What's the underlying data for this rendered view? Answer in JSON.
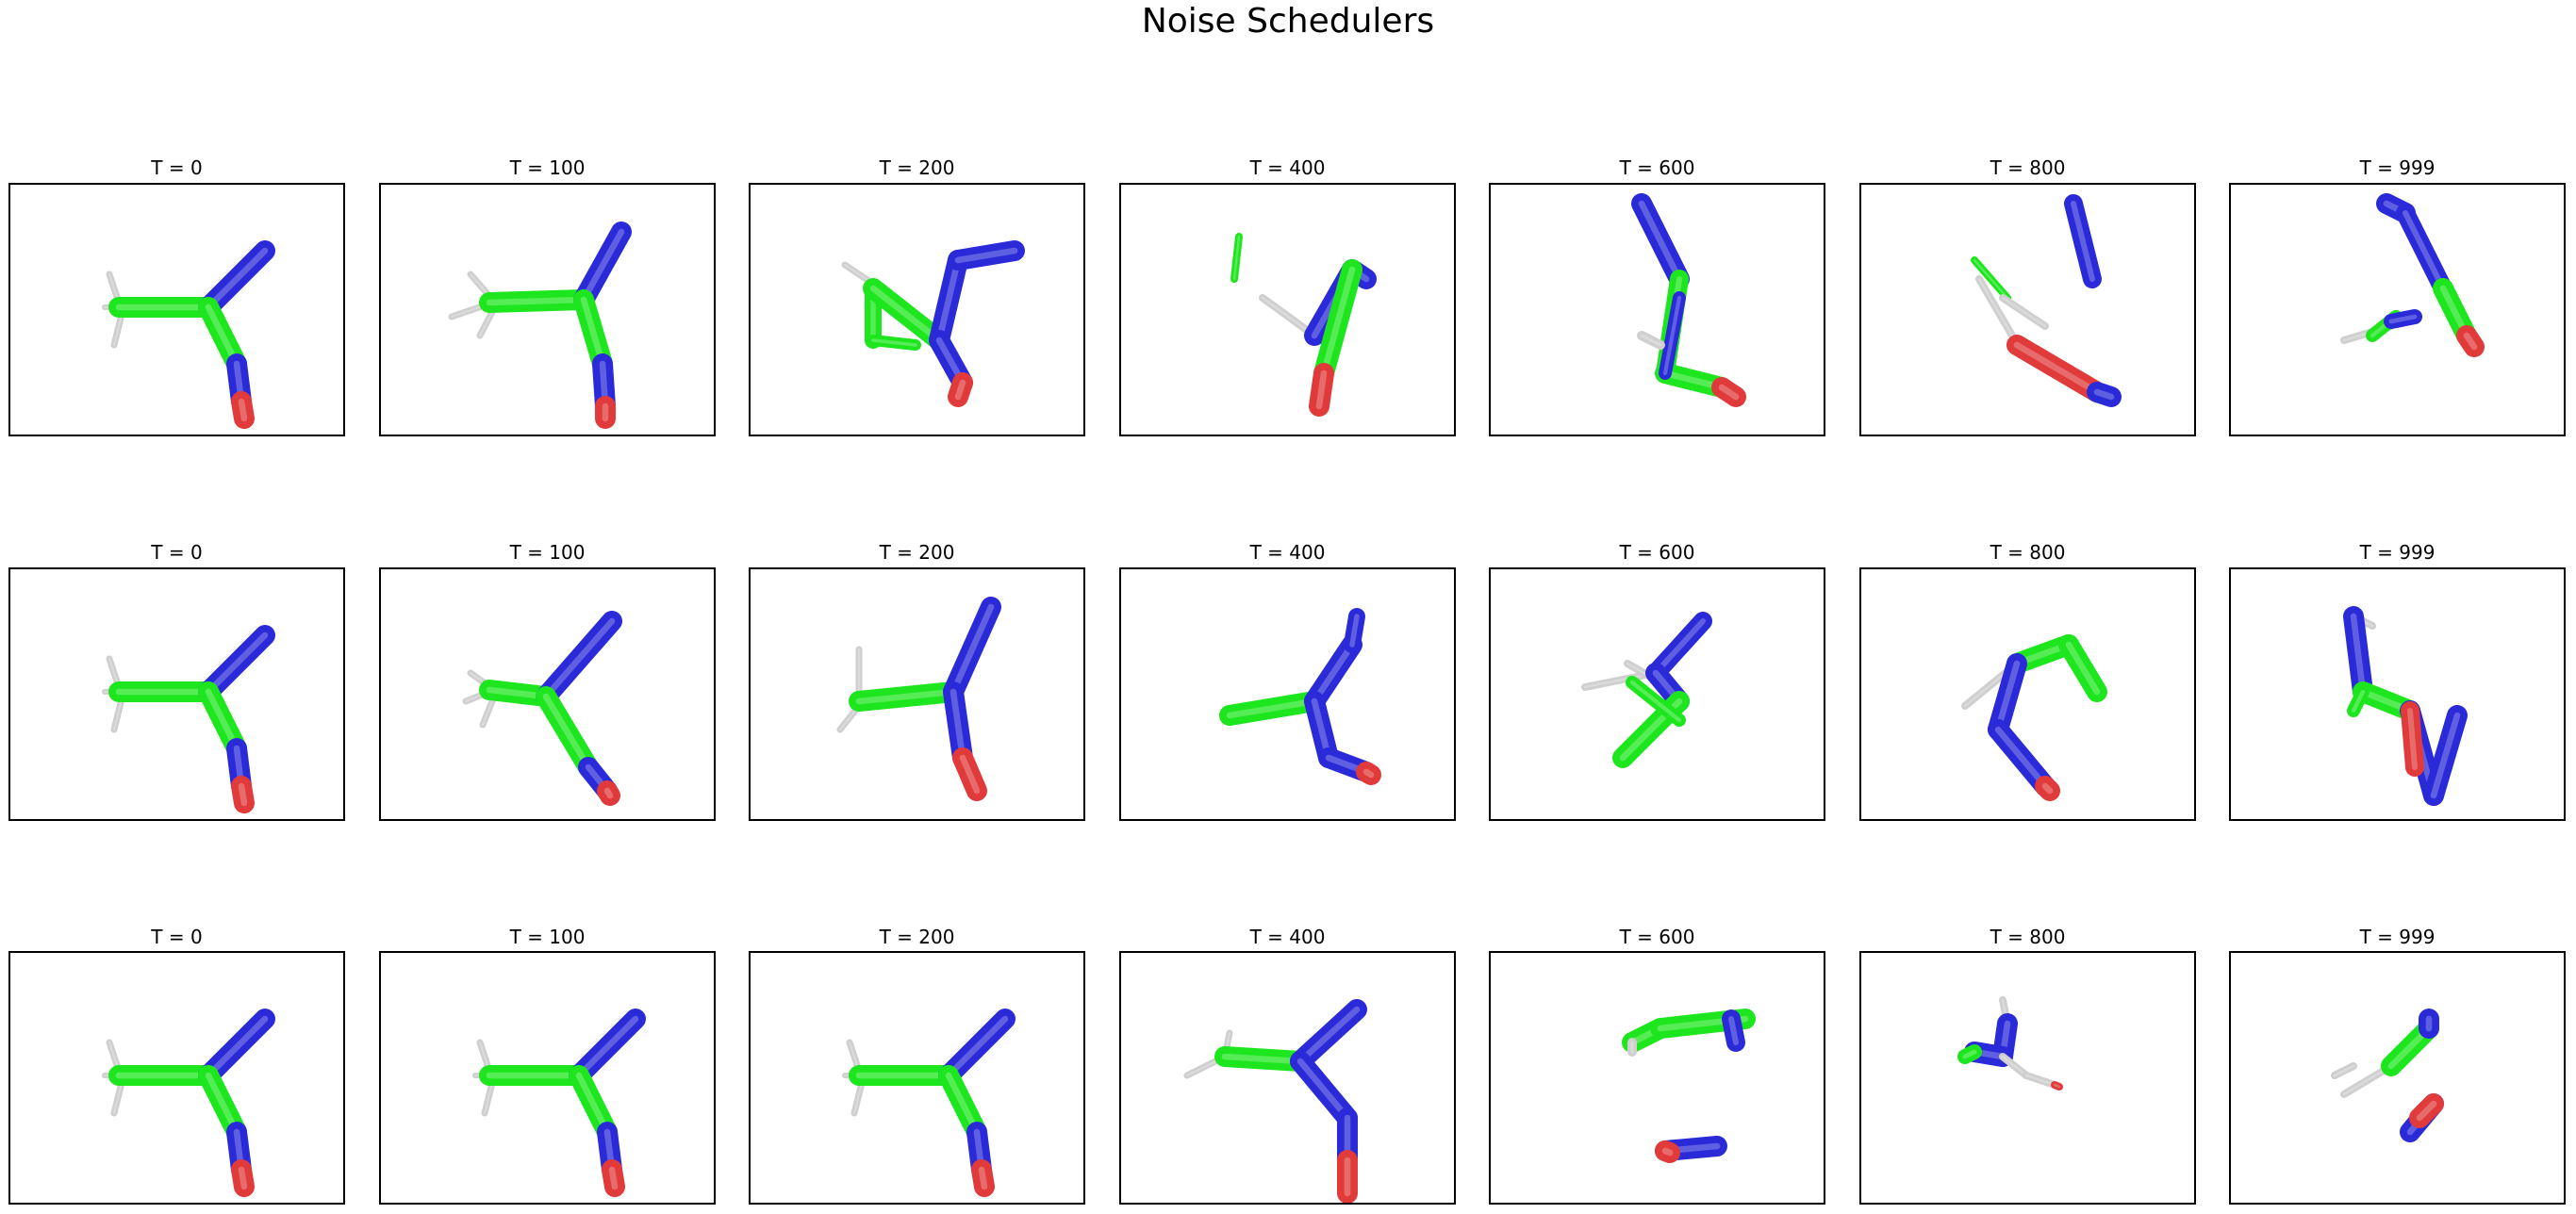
{
  "title": "Noise Schedulers",
  "timesteps": [
    "T = 0",
    "T = 100",
    "T = 200",
    "T = 400",
    "T = 600",
    "T = 800",
    "T = 999"
  ],
  "rows": 3,
  "colors": {
    "carbon": "#1ee61e",
    "nitrogen": "#2a2ad8",
    "oxygen": "#e03a3a",
    "hydrogen": "#cfcfcf",
    "frame": "#000000",
    "background": "#ffffff"
  },
  "atom_icons": [
    "carbon-bond",
    "nitrogen-bond",
    "oxygen-bond",
    "hydrogen-bond"
  ]
}
